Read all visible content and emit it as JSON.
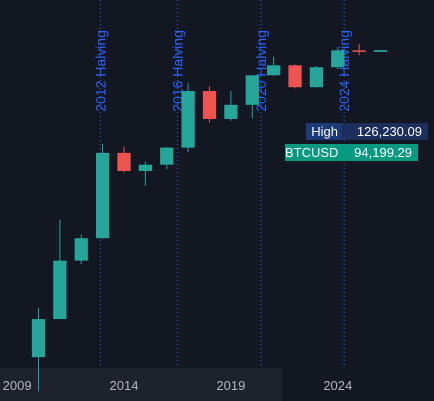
{
  "colors": {
    "background": "#131722",
    "bottom_panel": "#1e222d",
    "up": "#26a69a",
    "down": "#ef5350",
    "halving": "#2962ff",
    "axis_text": "#b2b5be",
    "high_label_bg": "#1c3a78",
    "high_value_bg": "#1c2f5c",
    "btc_label_bg": "#089981"
  },
  "labels": {
    "high_name": "High",
    "high_value": "126,230.09",
    "price_name": "BTCUSD",
    "price_value": "94,199.29"
  },
  "chart_data": {
    "type": "candlestick",
    "interval": "yearly",
    "scale": "log",
    "ylim": [
      0.03,
      1000000
    ],
    "xlim": [
      2008.2,
      2028.5
    ],
    "grid": false,
    "xticks": [
      2009,
      2014,
      2019,
      2024
    ],
    "candles": [
      {
        "year": 2010,
        "open": 0.05,
        "high": 0.5,
        "low": 0.01,
        "close": 0.3
      },
      {
        "year": 2011,
        "open": 0.3,
        "high": 32,
        "low": 0.3,
        "close": 4.7
      },
      {
        "year": 2012,
        "open": 4.7,
        "high": 16,
        "low": 4,
        "close": 13.5
      },
      {
        "year": 2013,
        "open": 13.5,
        "high": 1150,
        "low": 13,
        "close": 750
      },
      {
        "year": 2014,
        "open": 750,
        "high": 1000,
        "low": 300,
        "close": 320
      },
      {
        "year": 2015,
        "open": 320,
        "high": 490,
        "low": 160,
        "close": 430
      },
      {
        "year": 2016,
        "open": 430,
        "high": 980,
        "low": 350,
        "close": 960
      },
      {
        "year": 2017,
        "open": 960,
        "high": 19800,
        "low": 780,
        "close": 13800
      },
      {
        "year": 2018,
        "open": 13800,
        "high": 17200,
        "low": 3150,
        "close": 3700
      },
      {
        "year": 2019,
        "open": 3700,
        "high": 13800,
        "low": 3400,
        "close": 7200
      },
      {
        "year": 2020,
        "open": 7200,
        "high": 29300,
        "low": 3800,
        "close": 28900
      },
      {
        "year": 2021,
        "open": 28900,
        "high": 69000,
        "low": 28100,
        "close": 46200
      },
      {
        "year": 2022,
        "open": 46200,
        "high": 48200,
        "low": 15500,
        "close": 16500
      },
      {
        "year": 2023,
        "open": 16500,
        "high": 44700,
        "low": 16500,
        "close": 42300
      },
      {
        "year": 2024,
        "open": 42300,
        "high": 108300,
        "low": 38500,
        "close": 93400
      },
      {
        "year": 2025,
        "open": 93400,
        "high": 126230,
        "low": 74400,
        "close": 87000
      },
      {
        "year": 2026,
        "open": 87000,
        "high": 95000,
        "low": 86000,
        "close": 94199
      }
    ],
    "halvings": [
      {
        "x": 2012.9,
        "label": "2012 Halving"
      },
      {
        "x": 2016.5,
        "label": "2016 Halving"
      },
      {
        "x": 2020.4,
        "label": "2020 Halving"
      },
      {
        "x": 2024.3,
        "label": "2024 Halving"
      }
    ],
    "high": 126230.09,
    "last_price": 94199.29
  }
}
